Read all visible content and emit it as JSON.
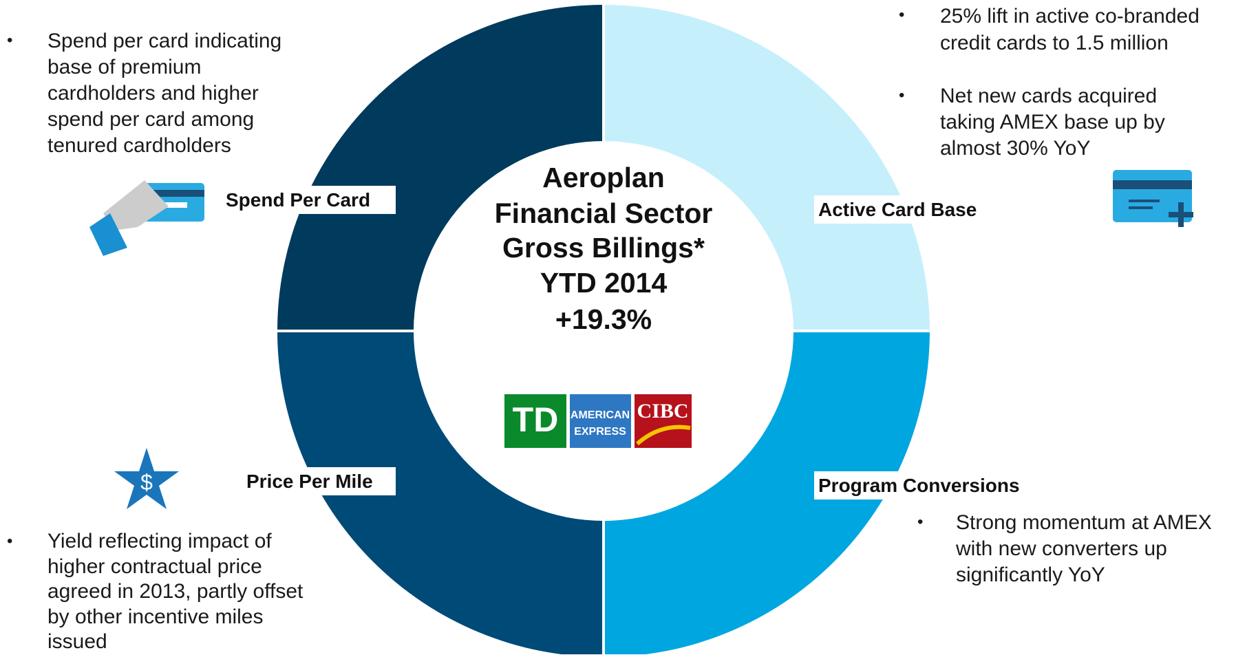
{
  "center": {
    "title": [
      "Aeroplan",
      "Financial Sector",
      "Gross Billings*",
      "YTD 2014",
      "+19.3%"
    ],
    "logos": [
      "TD",
      "AMERICAN",
      "EXPRESS",
      "CIBC"
    ]
  },
  "segments": [
    {
      "label": "Spend Per Card",
      "bullets": [
        [
          "Spend per card indicating",
          "base of premium",
          "cardholders and higher",
          "spend per card among",
          "tenured cardholders"
        ]
      ]
    },
    {
      "label": "Active Card Base",
      "bullets": [
        [
          "25% lift in active co-branded",
          "credit cards to 1.5 million"
        ],
        [
          "Net new cards acquired",
          "taking AMEX base up by",
          "almost 30% YoY"
        ]
      ]
    },
    {
      "label": "Program Conversions",
      "bullets": [
        [
          "Strong momentum at AMEX",
          "with new converters up",
          "significantly YoY"
        ]
      ]
    },
    {
      "label": "Price Per Mile",
      "bullets": [
        [
          "Yield reflecting impact of",
          "higher contractual price",
          "agreed in 2013, partly offset",
          "by other incentive miles",
          "issued"
        ]
      ]
    }
  ]
}
